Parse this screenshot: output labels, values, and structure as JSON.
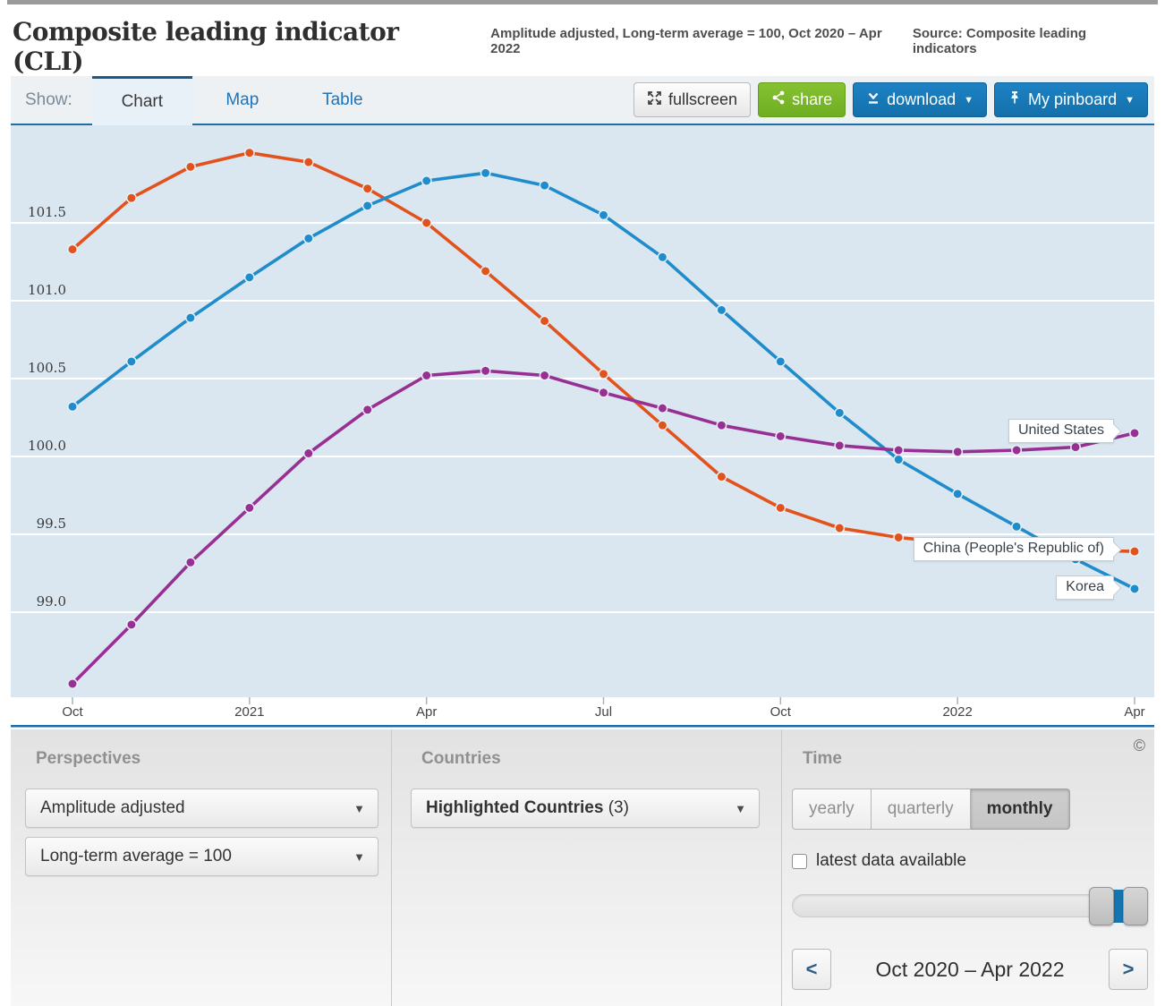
{
  "header": {
    "title": "Composite leading indicator (CLI)",
    "subtitle": "Amplitude adjusted, Long-term average = 100, Oct 2020 – Apr 2022",
    "source": "Source: Composite leading indicators"
  },
  "toolbar": {
    "show_label": "Show:",
    "tabs": [
      {
        "label": "Chart",
        "active": true
      },
      {
        "label": "Map",
        "active": false
      },
      {
        "label": "Table",
        "active": false
      }
    ],
    "buttons": {
      "fullscreen": "fullscreen",
      "share": "share",
      "download": "download",
      "pinboard": "My pinboard"
    }
  },
  "icons": {
    "caret": "▼",
    "fullscreen": "expand-arrows",
    "share": "share-nodes",
    "download": "download-tray",
    "pinboard": "pushpin",
    "prev": "<",
    "next": ">",
    "copyright": "©"
  },
  "chart_data": {
    "type": "line",
    "title": "Composite leading indicator (CLI), amplitude adjusted, long-term average = 100",
    "x_labels": [
      "Oct 2020",
      "Nov 2020",
      "Dec 2020",
      "Jan 2021",
      "Feb 2021",
      "Mar 2021",
      "Apr 2021",
      "May 2021",
      "Jun 2021",
      "Jul 2021",
      "Aug 2021",
      "Sep 2021",
      "Oct 2021",
      "Nov 2021",
      "Dec 2021",
      "Jan 2022",
      "Feb 2022",
      "Mar 2022",
      "Apr 2022"
    ],
    "x_tick_labels": [
      {
        "index": 0,
        "label": "Oct"
      },
      {
        "index": 3,
        "label": "2021"
      },
      {
        "index": 6,
        "label": "Apr"
      },
      {
        "index": 9,
        "label": "Jul"
      },
      {
        "index": 12,
        "label": "Oct"
      },
      {
        "index": 15,
        "label": "2022"
      },
      {
        "index": 18,
        "label": "Apr"
      }
    ],
    "y_ticks": [
      {
        "value": 101.5,
        "label": "101.5"
      },
      {
        "value": 101.0,
        "label": "101.0"
      },
      {
        "value": 100.5,
        "label": "100.5"
      },
      {
        "value": 100.0,
        "label": "100.0"
      },
      {
        "value": 99.5,
        "label": "99.5"
      },
      {
        "value": 99.0,
        "label": "99.0"
      }
    ],
    "ylim": [
      98.45,
      102.13
    ],
    "grid": true,
    "legend_position": "end-of-line-callouts",
    "series": [
      {
        "name": "China (People's Republic of)",
        "color": "#e2521c",
        "values": [
          101.33,
          101.66,
          101.86,
          101.95,
          101.89,
          101.72,
          101.5,
          101.19,
          100.87,
          100.53,
          100.2,
          99.87,
          99.67,
          99.54,
          99.48,
          99.44,
          99.42,
          99.4,
          99.39
        ]
      },
      {
        "name": "Korea",
        "color": "#1f8ccc",
        "values": [
          100.32,
          100.61,
          100.89,
          101.15,
          101.4,
          101.61,
          101.77,
          101.82,
          101.74,
          101.55,
          101.28,
          100.94,
          100.61,
          100.28,
          99.98,
          99.76,
          99.55,
          99.34,
          99.15
        ]
      },
      {
        "name": "United States",
        "color": "#983094",
        "values": [
          98.54,
          98.92,
          99.32,
          99.67,
          100.02,
          100.3,
          100.52,
          100.55,
          100.52,
          100.41,
          100.31,
          100.2,
          100.13,
          100.07,
          100.04,
          100.03,
          100.04,
          100.06,
          100.15
        ]
      }
    ],
    "callouts": [
      {
        "label": "United States"
      },
      {
        "label": "China (People's Republic of)"
      },
      {
        "label": "Korea"
      }
    ]
  },
  "controls": {
    "perspectives": {
      "label": "Perspectives",
      "dropdowns": [
        "Amplitude adjusted",
        "Long-term average = 100"
      ]
    },
    "countries": {
      "label": "Countries",
      "value_bold": "Highlighted Countries",
      "value_count": " (3)"
    },
    "time": {
      "label": "Time",
      "frequency_options": [
        {
          "label": "yearly",
          "selected": false
        },
        {
          "label": "quarterly",
          "selected": false
        },
        {
          "label": "monthly",
          "selected": true
        }
      ],
      "checkbox_label": "latest data available",
      "range_label": "Oct 2020 – Apr 2022"
    }
  }
}
